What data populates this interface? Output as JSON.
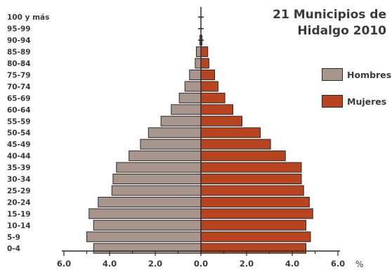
{
  "title_line1": "21 Municipios de",
  "title_line2": "Hidalgo 2010",
  "unit_label": "%",
  "colors": {
    "hombres": "#a8968c",
    "mujeres": "#b8451f",
    "text": "#3a3a3a",
    "axis": "#2a2a2a"
  },
  "chart_data": {
    "type": "bar",
    "orientation": "horizontal-pyramid",
    "categories": [
      "100 y más",
      "95-99",
      "90-94",
      "85-89",
      "80-84",
      "75-79",
      "70-74",
      "65-69",
      "60-64",
      "55-59",
      "50-54",
      "45-49",
      "40-44",
      "35-39",
      "30-34",
      "25-29",
      "20-24",
      "15-19",
      "10-14",
      "5-9",
      "0-4"
    ],
    "series": [
      {
        "name": "Hombres",
        "values": [
          0.0,
          0.0,
          0.05,
          0.2,
          0.25,
          0.5,
          0.7,
          0.95,
          1.3,
          1.75,
          2.3,
          2.65,
          3.15,
          3.7,
          3.85,
          3.9,
          4.5,
          4.9,
          4.7,
          5.0,
          4.7
        ]
      },
      {
        "name": "Mujeres",
        "values": [
          0.0,
          0.0,
          0.05,
          0.3,
          0.35,
          0.6,
          0.75,
          1.05,
          1.4,
          1.8,
          2.6,
          3.05,
          3.7,
          4.4,
          4.4,
          4.5,
          4.75,
          4.9,
          4.6,
          4.8,
          4.6
        ]
      }
    ],
    "x_ticks": [
      "6.0",
      "4.0",
      "2.0",
      "0.0",
      "2.0",
      "4.0",
      "6.0"
    ],
    "xlim": [
      -6,
      6
    ],
    "legend_placement": "right",
    "grid": false
  }
}
